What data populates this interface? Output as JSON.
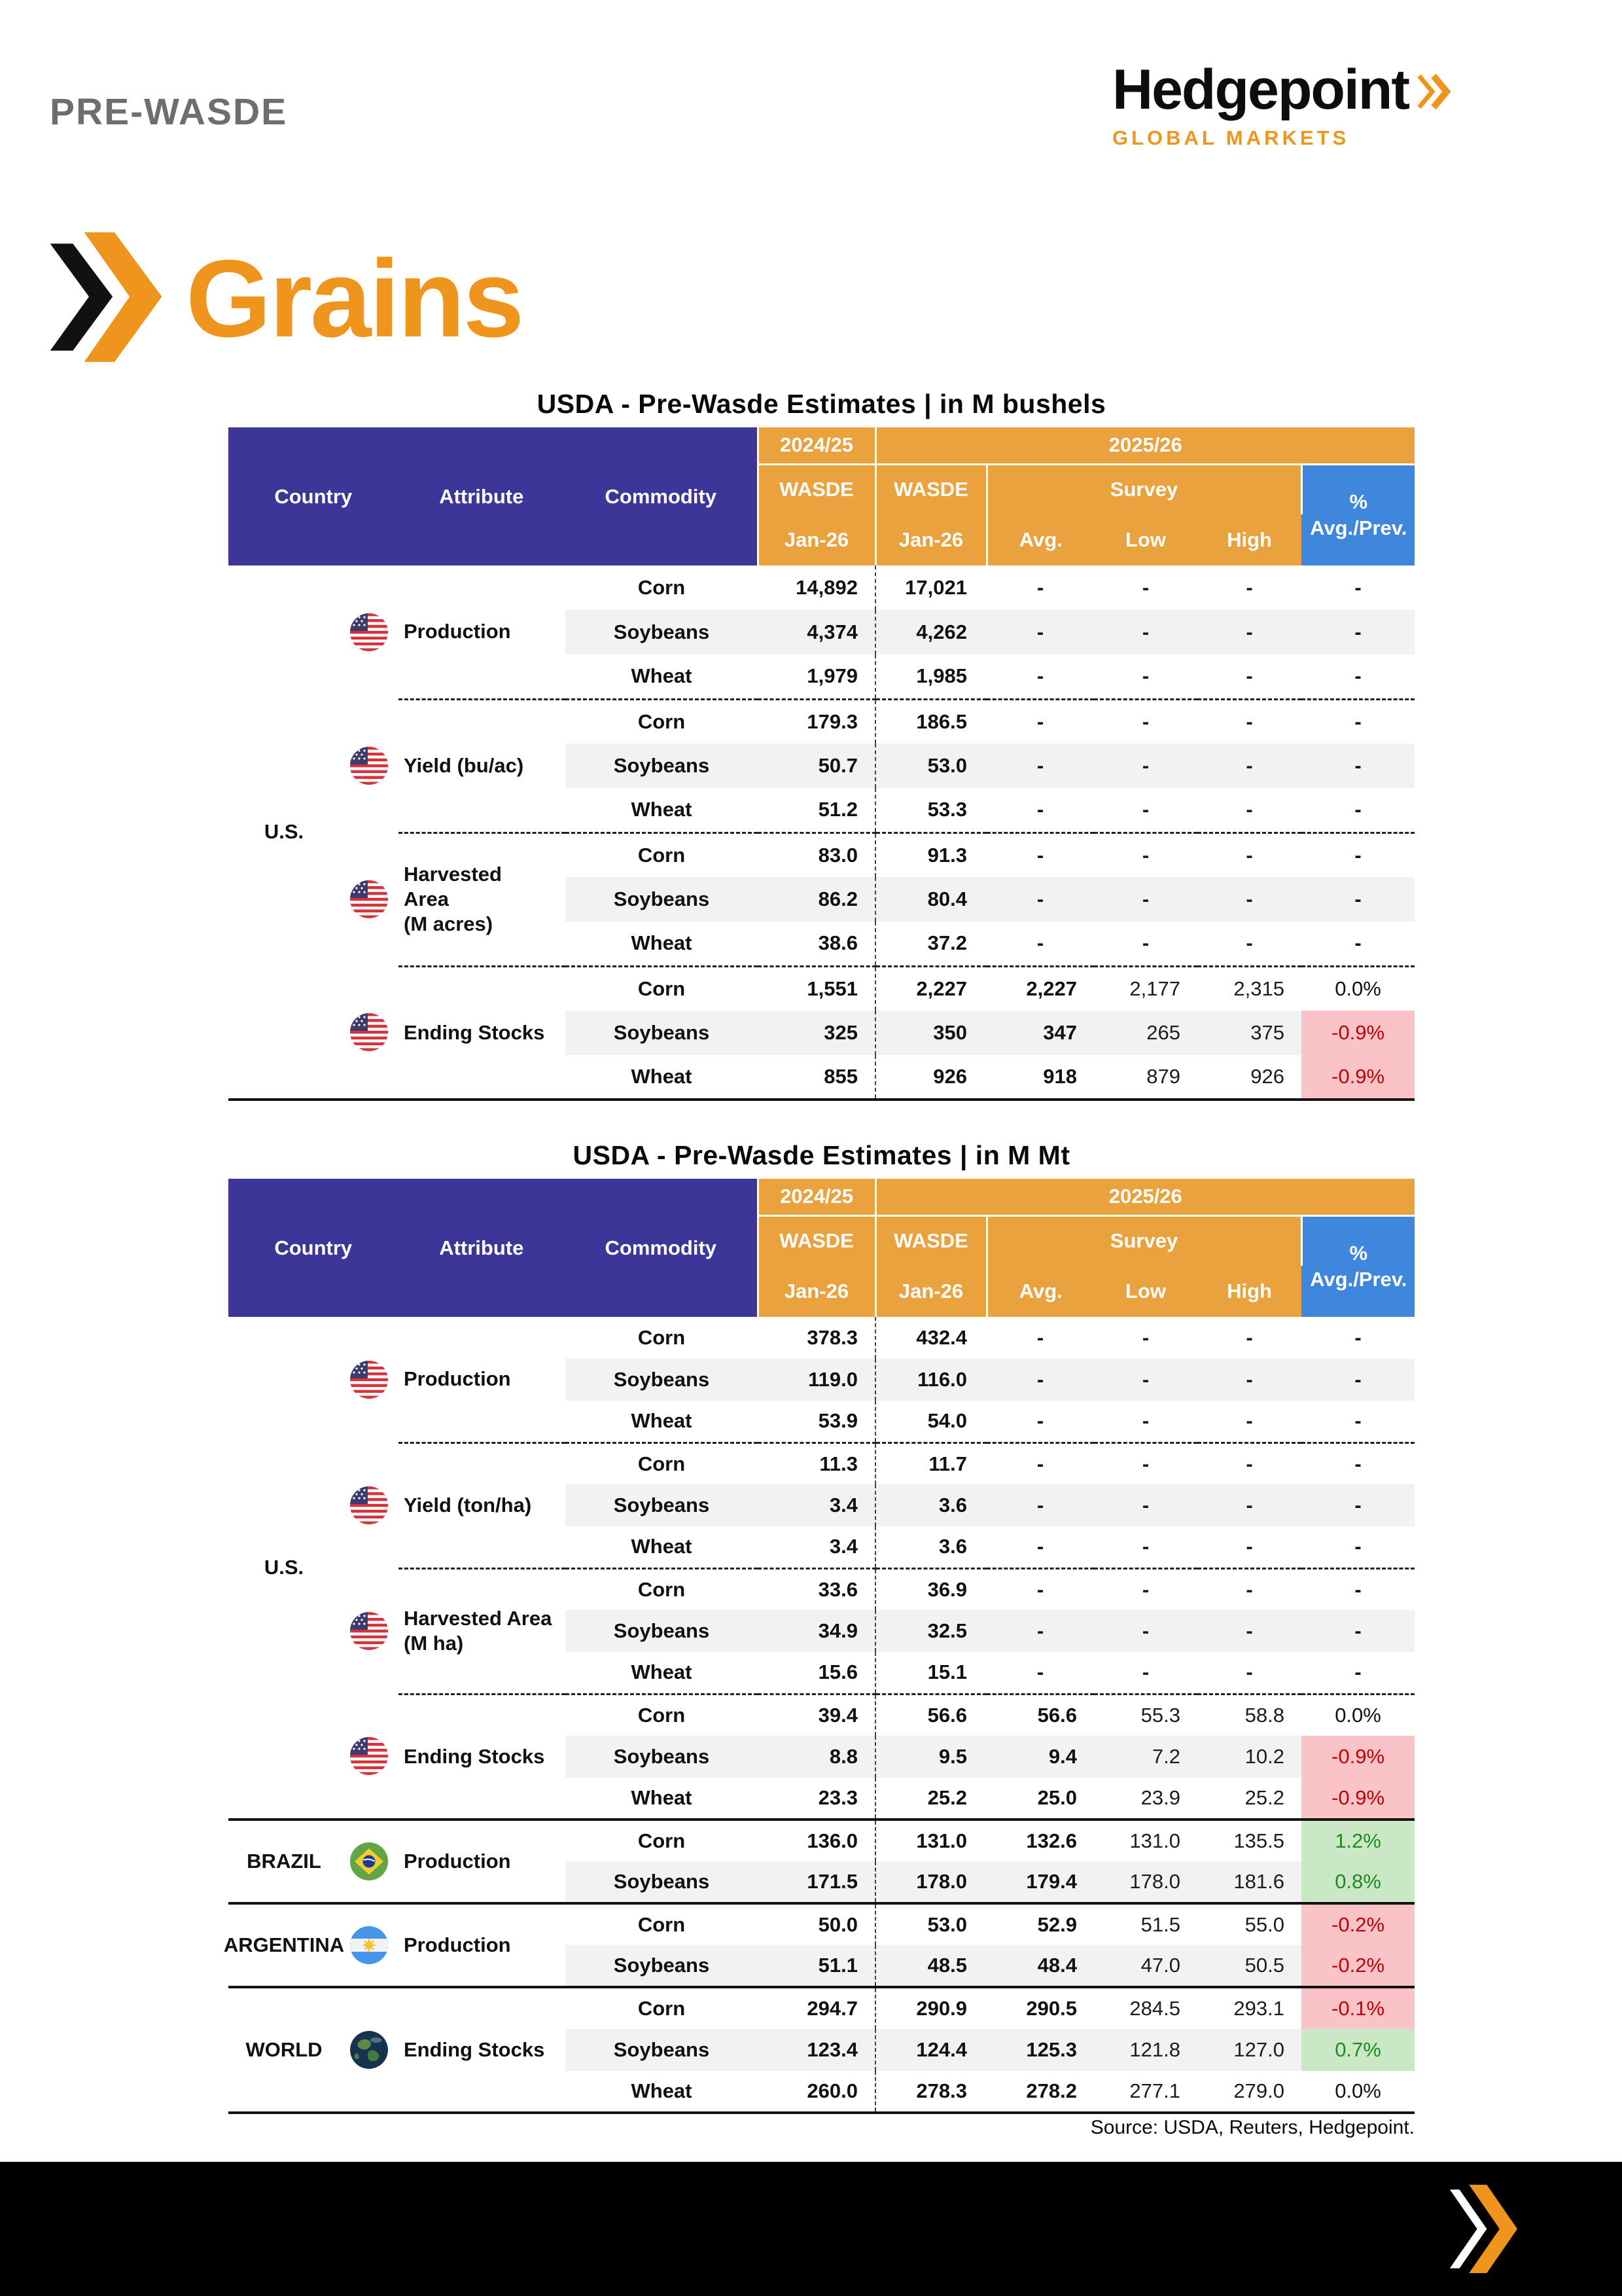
{
  "page": {
    "kicker": "PRE-WASDE",
    "brand": "Hedgepoint",
    "brand_sub": "GLOBAL MARKETS",
    "section_title": "Grains",
    "source": "Source: USDA, Reuters, Hedgepoint."
  },
  "colors": {
    "brand_orange": "#EF941D",
    "header_purple": "#3B3697",
    "header_orange": "#E9A23E",
    "header_blue": "#3E87DC",
    "negative_bg": "#FAC3C7",
    "negative_text": "#C00000",
    "positive_bg": "#CBE8C6",
    "positive_text": "#1F8A1F",
    "zebra_gray": "#F2F2F2",
    "kicker_gray": "#6E6E6E"
  },
  "table_headers": {
    "country": "Country",
    "attribute": "Attribute",
    "commodity": "Commodity",
    "year_prev": "2024/25",
    "year_cur": "2025/26",
    "wasde": "WASDE",
    "month": "Jan-26",
    "survey": "Survey",
    "avg": "Avg.",
    "low": "Low",
    "high": "High",
    "pct_top": "%",
    "pct_bottom": "Avg./Prev."
  },
  "tables": [
    {
      "title": "USDA - Pre-Wasde Estimates | in M bushels",
      "groups": [
        {
          "country": "U.S.",
          "sections": [
            {
              "flag": "us",
              "attribute": "Production",
              "rows": [
                {
                  "commodity": "Corn",
                  "w1": "14,892",
                  "w2": "17,021",
                  "avg": "-",
                  "low": "-",
                  "high": "-",
                  "pct": "-",
                  "tone": ""
                },
                {
                  "commodity": "Soybeans",
                  "w1": "4,374",
                  "w2": "4,262",
                  "avg": "-",
                  "low": "-",
                  "high": "-",
                  "pct": "-",
                  "tone": ""
                },
                {
                  "commodity": "Wheat",
                  "w1": "1,979",
                  "w2": "1,985",
                  "avg": "-",
                  "low": "-",
                  "high": "-",
                  "pct": "-",
                  "tone": ""
                }
              ]
            },
            {
              "flag": "us",
              "attribute": "Yield (bu/ac)",
              "rows": [
                {
                  "commodity": "Corn",
                  "w1": "179.3",
                  "w2": "186.5",
                  "avg": "-",
                  "low": "-",
                  "high": "-",
                  "pct": "-",
                  "tone": ""
                },
                {
                  "commodity": "Soybeans",
                  "w1": "50.7",
                  "w2": "53.0",
                  "avg": "-",
                  "low": "-",
                  "high": "-",
                  "pct": "-",
                  "tone": ""
                },
                {
                  "commodity": "Wheat",
                  "w1": "51.2",
                  "w2": "53.3",
                  "avg": "-",
                  "low": "-",
                  "high": "-",
                  "pct": "-",
                  "tone": ""
                }
              ]
            },
            {
              "flag": "us",
              "attribute": "Harvested\nArea\n(M acres)",
              "rows": [
                {
                  "commodity": "Corn",
                  "w1": "83.0",
                  "w2": "91.3",
                  "avg": "-",
                  "low": "-",
                  "high": "-",
                  "pct": "-",
                  "tone": ""
                },
                {
                  "commodity": "Soybeans",
                  "w1": "86.2",
                  "w2": "80.4",
                  "avg": "-",
                  "low": "-",
                  "high": "-",
                  "pct": "-",
                  "tone": ""
                },
                {
                  "commodity": "Wheat",
                  "w1": "38.6",
                  "w2": "37.2",
                  "avg": "-",
                  "low": "-",
                  "high": "-",
                  "pct": "-",
                  "tone": ""
                }
              ]
            },
            {
              "flag": "us",
              "attribute": "Ending Stocks",
              "rows": [
                {
                  "commodity": "Corn",
                  "w1": "1,551",
                  "w2": "2,227",
                  "avg": "2,227",
                  "low": "2,177",
                  "high": "2,315",
                  "pct": "0.0%",
                  "tone": ""
                },
                {
                  "commodity": "Soybeans",
                  "w1": "325",
                  "w2": "350",
                  "avg": "347",
                  "low": "265",
                  "high": "375",
                  "pct": "-0.9%",
                  "tone": "neg"
                },
                {
                  "commodity": "Wheat",
                  "w1": "855",
                  "w2": "926",
                  "avg": "918",
                  "low": "879",
                  "high": "926",
                  "pct": "-0.9%",
                  "tone": "neg"
                }
              ]
            }
          ]
        }
      ]
    },
    {
      "title": "USDA - Pre-Wasde Estimates | in M Mt",
      "groups": [
        {
          "country": "U.S.",
          "sections": [
            {
              "flag": "us",
              "attribute": "Production",
              "rows": [
                {
                  "commodity": "Corn",
                  "w1": "378.3",
                  "w2": "432.4",
                  "avg": "-",
                  "low": "-",
                  "high": "-",
                  "pct": "-",
                  "tone": ""
                },
                {
                  "commodity": "Soybeans",
                  "w1": "119.0",
                  "w2": "116.0",
                  "avg": "-",
                  "low": "-",
                  "high": "-",
                  "pct": "-",
                  "tone": ""
                },
                {
                  "commodity": "Wheat",
                  "w1": "53.9",
                  "w2": "54.0",
                  "avg": "-",
                  "low": "-",
                  "high": "-",
                  "pct": "-",
                  "tone": ""
                }
              ]
            },
            {
              "flag": "us",
              "attribute": "Yield (ton/ha)",
              "rows": [
                {
                  "commodity": "Corn",
                  "w1": "11.3",
                  "w2": "11.7",
                  "avg": "-",
                  "low": "-",
                  "high": "-",
                  "pct": "-",
                  "tone": ""
                },
                {
                  "commodity": "Soybeans",
                  "w1": "3.4",
                  "w2": "3.6",
                  "avg": "-",
                  "low": "-",
                  "high": "-",
                  "pct": "-",
                  "tone": ""
                },
                {
                  "commodity": "Wheat",
                  "w1": "3.4",
                  "w2": "3.6",
                  "avg": "-",
                  "low": "-",
                  "high": "-",
                  "pct": "-",
                  "tone": ""
                }
              ]
            },
            {
              "flag": "us",
              "attribute": "Harvested Area\n(M ha)",
              "rows": [
                {
                  "commodity": "Corn",
                  "w1": "33.6",
                  "w2": "36.9",
                  "avg": "-",
                  "low": "-",
                  "high": "-",
                  "pct": "-",
                  "tone": ""
                },
                {
                  "commodity": "Soybeans",
                  "w1": "34.9",
                  "w2": "32.5",
                  "avg": "-",
                  "low": "-",
                  "high": "-",
                  "pct": "-",
                  "tone": ""
                },
                {
                  "commodity": "Wheat",
                  "w1": "15.6",
                  "w2": "15.1",
                  "avg": "-",
                  "low": "-",
                  "high": "-",
                  "pct": "-",
                  "tone": ""
                }
              ]
            },
            {
              "flag": "us",
              "attribute": "Ending Stocks",
              "rows": [
                {
                  "commodity": "Corn",
                  "w1": "39.4",
                  "w2": "56.6",
                  "avg": "56.6",
                  "low": "55.3",
                  "high": "58.8",
                  "pct": "0.0%",
                  "tone": ""
                },
                {
                  "commodity": "Soybeans",
                  "w1": "8.8",
                  "w2": "9.5",
                  "avg": "9.4",
                  "low": "7.2",
                  "high": "10.2",
                  "pct": "-0.9%",
                  "tone": "neg"
                },
                {
                  "commodity": "Wheat",
                  "w1": "23.3",
                  "w2": "25.2",
                  "avg": "25.0",
                  "low": "23.9",
                  "high": "25.2",
                  "pct": "-0.9%",
                  "tone": "neg"
                }
              ]
            }
          ]
        },
        {
          "country": "BRAZIL",
          "sections": [
            {
              "flag": "br",
              "attribute": "Production",
              "rows": [
                {
                  "commodity": "Corn",
                  "w1": "136.0",
                  "w2": "131.0",
                  "avg": "132.6",
                  "low": "131.0",
                  "high": "135.5",
                  "pct": "1.2%",
                  "tone": "pos"
                },
                {
                  "commodity": "Soybeans",
                  "w1": "171.5",
                  "w2": "178.0",
                  "avg": "179.4",
                  "low": "178.0",
                  "high": "181.6",
                  "pct": "0.8%",
                  "tone": "pos"
                }
              ]
            }
          ]
        },
        {
          "country": "ARGENTINA",
          "sections": [
            {
              "flag": "ar",
              "attribute": "Production",
              "rows": [
                {
                  "commodity": "Corn",
                  "w1": "50.0",
                  "w2": "53.0",
                  "avg": "52.9",
                  "low": "51.5",
                  "high": "55.0",
                  "pct": "-0.2%",
                  "tone": "neg"
                },
                {
                  "commodity": "Soybeans",
                  "w1": "51.1",
                  "w2": "48.5",
                  "avg": "48.4",
                  "low": "47.0",
                  "high": "50.5",
                  "pct": "-0.2%",
                  "tone": "neg"
                }
              ]
            }
          ]
        },
        {
          "country": "WORLD",
          "sections": [
            {
              "flag": "world",
              "attribute": "Ending Stocks",
              "rows": [
                {
                  "commodity": "Corn",
                  "w1": "294.7",
                  "w2": "290.9",
                  "avg": "290.5",
                  "low": "284.5",
                  "high": "293.1",
                  "pct": "-0.1%",
                  "tone": "neg"
                },
                {
                  "commodity": "Soybeans",
                  "w1": "123.4",
                  "w2": "124.4",
                  "avg": "125.3",
                  "low": "121.8",
                  "high": "127.0",
                  "pct": "0.7%",
                  "tone": "pos"
                },
                {
                  "commodity": "Wheat",
                  "w1": "260.0",
                  "w2": "278.3",
                  "avg": "278.2",
                  "low": "277.1",
                  "high": "279.0",
                  "pct": "0.0%",
                  "tone": ""
                }
              ]
            }
          ]
        }
      ]
    }
  ]
}
